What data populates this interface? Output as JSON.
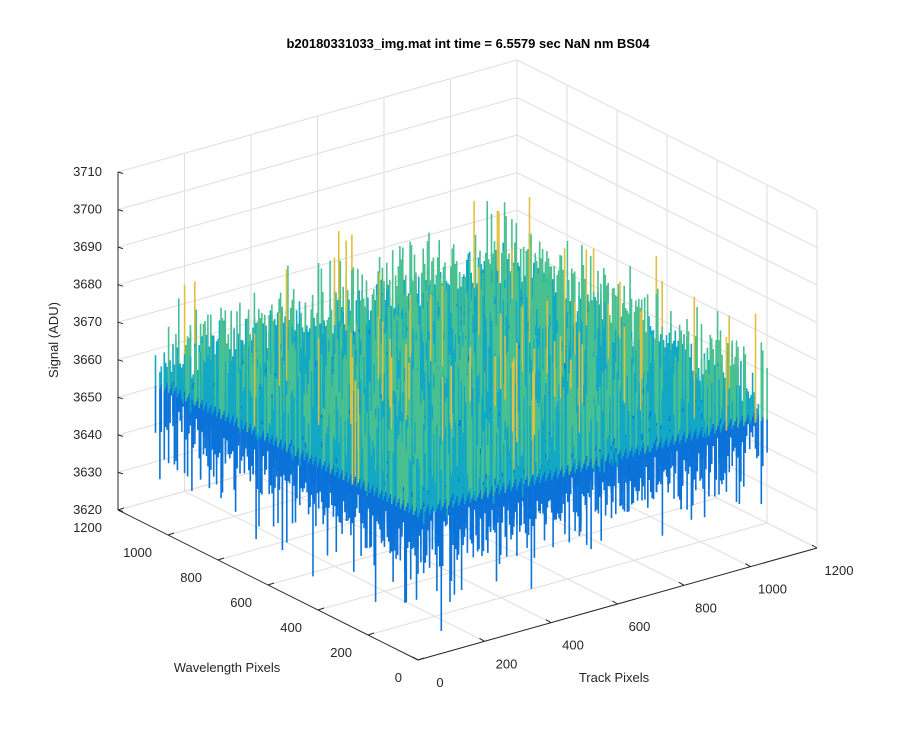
{
  "chart_data": {
    "type": "surface3d",
    "title": "b20180331033_img.mat int time = 6.5579 sec  NaN nm BS04",
    "xlabel": "Track Pixels",
    "ylabel": "Wavelength Pixels",
    "zlabel": "Signal (ADU)",
    "x_ticks": [
      "0",
      "200",
      "400",
      "600",
      "800",
      "1000",
      "1200"
    ],
    "y_ticks": [
      "0",
      "200",
      "400",
      "600",
      "800",
      "1000",
      "1200"
    ],
    "z_ticks": [
      "3620",
      "3630",
      "3640",
      "3650",
      "3660",
      "3670",
      "3680",
      "3690",
      "3700",
      "3710"
    ],
    "xlim": [
      0,
      1200
    ],
    "ylim": [
      0,
      1200
    ],
    "zlim": [
      3620,
      3710
    ],
    "x_extent": [
      0,
      1050
    ],
    "y_extent": [
      0,
      1050
    ],
    "signal_mean": 3658,
    "signal_range": [
      3625,
      3705
    ],
    "grid": true,
    "colormap": "parula",
    "colors": {
      "low": "#0a72d8",
      "mid": "#13a8c4",
      "midhigh": "#48c090",
      "high": "#e0c040"
    }
  }
}
